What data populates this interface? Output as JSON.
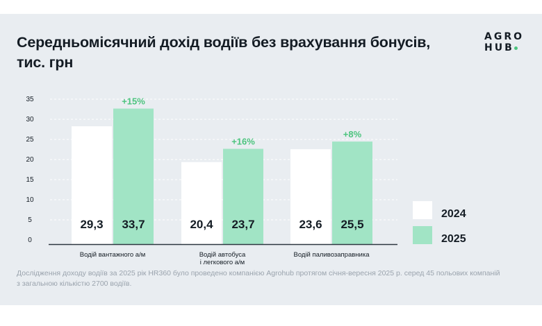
{
  "title": "Середньомісячний дохід водіїв без врахування бонусів, тис. грн",
  "logo": {
    "line1": "AGRO",
    "line2": "HUB",
    "dot_color": "#4cc47e"
  },
  "footnote": "Дослідження доходу водіїв за 2025 рік HR360 було проведено компанією Agrohub протягом січня-вересня 2025 р. серед 45 польових компаній з загальною кількістю 2700 водіїв.",
  "colors": {
    "series_2024": "#ffffff",
    "series_2025": "#a1e4c5",
    "growth_label": "#4cc47e",
    "text": "#141c24",
    "background": "#e9edf1"
  },
  "chart_data": {
    "type": "bar",
    "title": "Середньомісячний дохід водіїв без врахування бонусів, тис. грн",
    "xlabel": "",
    "ylabel": "",
    "ylim": [
      0,
      35
    ],
    "yticks": [
      0,
      5,
      10,
      15,
      20,
      25,
      30,
      35
    ],
    "grid": true,
    "legend_position": "right",
    "categories": [
      [
        "Водій вантажного а/м"
      ],
      [
        "Водій автобуса",
        "і легкового а/м"
      ],
      [
        "Водій паливозаправника"
      ]
    ],
    "series": [
      {
        "name": "2024",
        "values": [
          29.3,
          20.4,
          23.6
        ],
        "labels": [
          "29,3",
          "20,4",
          "23,6"
        ]
      },
      {
        "name": "2025",
        "values": [
          33.7,
          23.7,
          25.5
        ],
        "labels": [
          "33,7",
          "23,7",
          "25,5"
        ]
      }
    ],
    "annotations": [
      "+15%",
      "+16%",
      "+8%"
    ]
  }
}
